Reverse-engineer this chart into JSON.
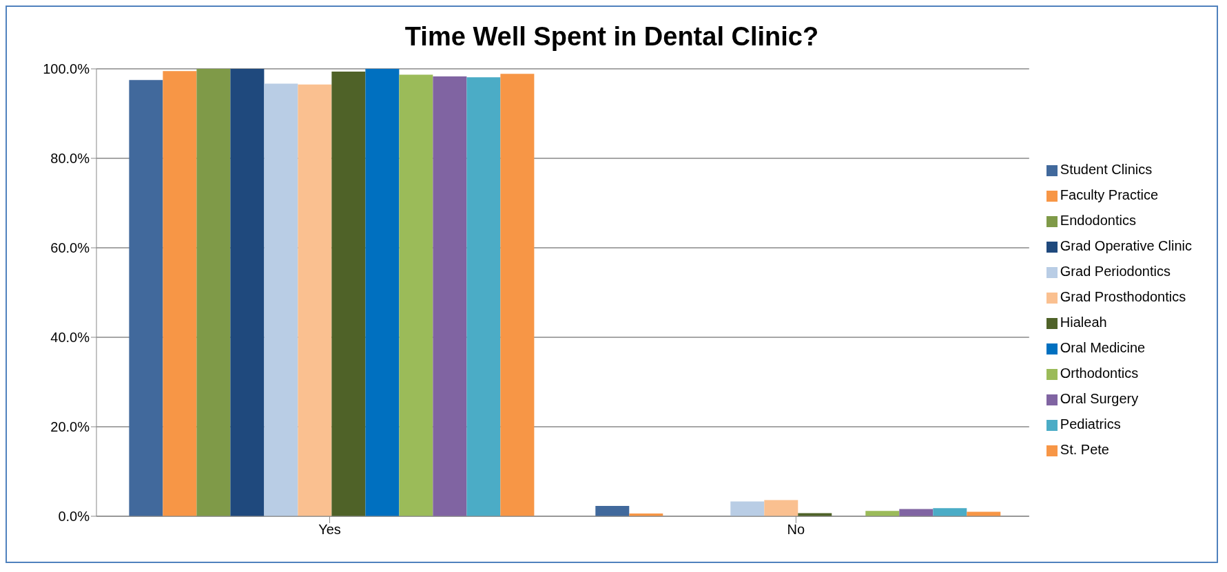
{
  "chart_data": {
    "type": "bar",
    "title": "Time Well Spent in Dental Clinic?",
    "categories": [
      "Yes",
      "No"
    ],
    "series": [
      {
        "name": "Student Clinics",
        "color": "#41699c",
        "values": [
          97.5,
          2.3
        ]
      },
      {
        "name": "Faculty Practice",
        "color": "#f79646",
        "values": [
          99.5,
          0.6
        ]
      },
      {
        "name": "Endodontics",
        "color": "#7f9a48",
        "values": [
          100,
          0
        ]
      },
      {
        "name": "Grad Operative Clinic",
        "color": "#1f497d",
        "values": [
          100,
          0
        ]
      },
      {
        "name": "Grad Periodontics",
        "color": "#b9cde5",
        "values": [
          96.7,
          3.3
        ]
      },
      {
        "name": "Grad Prosthodontics",
        "color": "#fac090",
        "values": [
          96.5,
          3.6
        ]
      },
      {
        "name": "Hialeah",
        "color": "#4f6228",
        "values": [
          99.4,
          0.7
        ]
      },
      {
        "name": "Oral Medicine",
        "color": "#0070c0",
        "values": [
          100,
          0
        ]
      },
      {
        "name": "Orthodontics",
        "color": "#9bbb59",
        "values": [
          98.7,
          1.2
        ]
      },
      {
        "name": "Oral Surgery",
        "color": "#8064a2",
        "values": [
          98.3,
          1.6
        ]
      },
      {
        "name": "Pediatrics",
        "color": "#4bacc6",
        "values": [
          98.1,
          1.8
        ]
      },
      {
        "name": "St. Pete",
        "color": "#f79646",
        "values": [
          98.9,
          1.0
        ]
      }
    ],
    "ylim": [
      0,
      100
    ],
    "yticks": [
      {
        "value": 0,
        "label": "0.0%"
      },
      {
        "value": 20,
        "label": "20.0%"
      },
      {
        "value": 40,
        "label": "40.0%"
      },
      {
        "value": 60,
        "label": "60.0%"
      },
      {
        "value": 80,
        "label": "80.0%"
      },
      {
        "value": 100,
        "label": "100.0%"
      }
    ],
    "grid": "y",
    "legend": "right"
  }
}
